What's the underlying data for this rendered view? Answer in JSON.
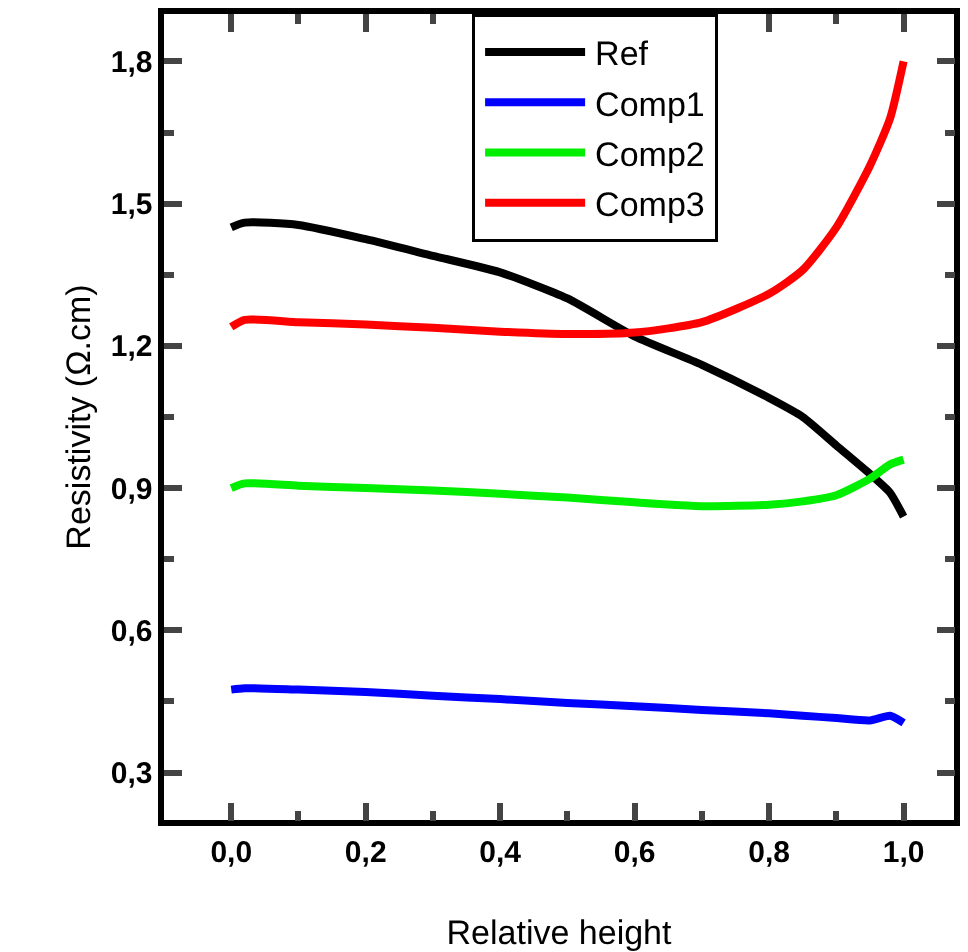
{
  "chart_data": {
    "type": "line",
    "xlabel": "Relative height",
    "ylabel": "Resistivity (Ω.cm)",
    "x": [
      0,
      0.02,
      0.1,
      0.2,
      0.3,
      0.4,
      0.5,
      0.6,
      0.7,
      0.8,
      0.85,
      0.9,
      0.95,
      0.98,
      1.0
    ],
    "series": [
      {
        "name": "Ref",
        "color": "#000000",
        "values": [
          1.45,
          1.46,
          1.455,
          1.425,
          1.39,
          1.355,
          1.3,
          1.22,
          1.16,
          1.09,
          1.05,
          0.99,
          0.93,
          0.89,
          0.84
        ]
      },
      {
        "name": "Comp1",
        "color": "#0000ff",
        "values": [
          0.475,
          0.478,
          0.475,
          0.47,
          0.462,
          0.455,
          0.447,
          0.44,
          0.432,
          0.425,
          0.42,
          0.415,
          0.41,
          0.42,
          0.405
        ]
      },
      {
        "name": "Comp2",
        "color": "#00ee00",
        "values": [
          0.9,
          0.91,
          0.905,
          0.9,
          0.895,
          0.888,
          0.88,
          0.87,
          0.862,
          0.865,
          0.872,
          0.885,
          0.92,
          0.95,
          0.96
        ]
      },
      {
        "name": "Comp3",
        "color": "#ff0000",
        "values": [
          1.24,
          1.255,
          1.25,
          1.245,
          1.238,
          1.23,
          1.225,
          1.228,
          1.25,
          1.31,
          1.36,
          1.45,
          1.58,
          1.68,
          1.8
        ]
      }
    ],
    "xlim": [
      -0.1,
      1.075
    ],
    "ylim": [
      0.2,
      1.9
    ],
    "xticks": [
      {
        "value": 0,
        "label": "0,0"
      },
      {
        "value": 0.2,
        "label": "0,2"
      },
      {
        "value": 0.4,
        "label": "0,4"
      },
      {
        "value": 0.6,
        "label": "0,6"
      },
      {
        "value": 0.8,
        "label": "0,8"
      },
      {
        "value": 1.0,
        "label": "1,0"
      }
    ],
    "yticks": [
      {
        "value": 0.3,
        "label": "0,3"
      },
      {
        "value": 0.6,
        "label": "0,6"
      },
      {
        "value": 0.9,
        "label": "0,9"
      },
      {
        "value": 1.2,
        "label": "1,2"
      },
      {
        "value": 1.5,
        "label": "1,5"
      },
      {
        "value": 1.8,
        "label": "1,8"
      }
    ],
    "grid": false,
    "legend": "top",
    "marker": "none",
    "line_style": "solid"
  }
}
